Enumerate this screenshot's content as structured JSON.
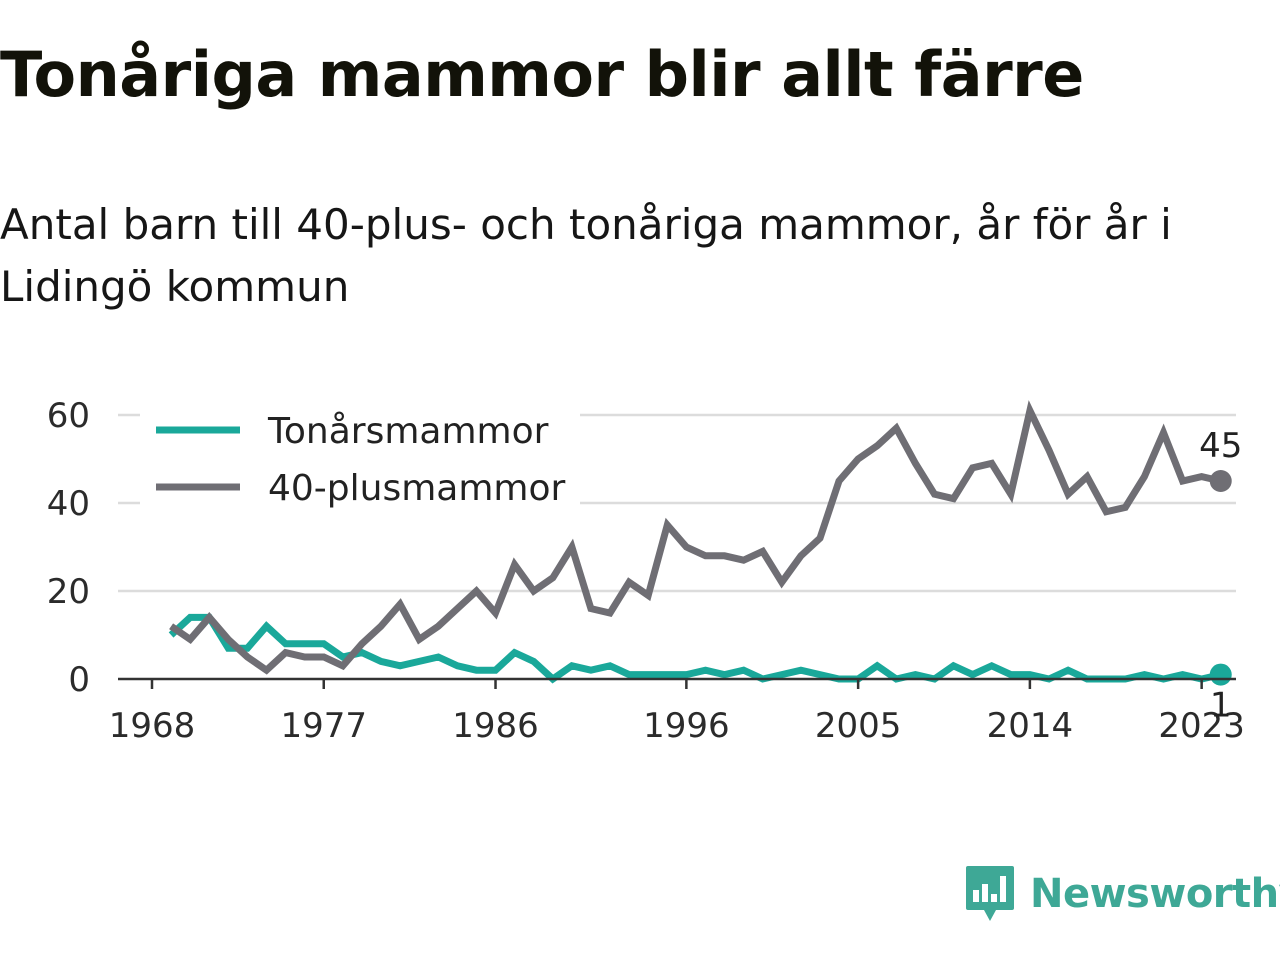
{
  "title": "Tonåriga mammor blir allt färre",
  "subtitle": "Antal barn till 40-plus- och tonåriga mammor, år för år i Lidingö kommun",
  "brand": {
    "name": "Newsworthy",
    "icon": "newsworthy-logo-icon",
    "color": "#3ea896"
  },
  "chart_data": {
    "type": "line",
    "x": [
      1969,
      1970,
      1971,
      1972,
      1973,
      1974,
      1975,
      1976,
      1977,
      1978,
      1979,
      1980,
      1981,
      1982,
      1983,
      1984,
      1985,
      1986,
      1987,
      1988,
      1989,
      1990,
      1991,
      1992,
      1993,
      1994,
      1995,
      1996,
      1997,
      1998,
      1999,
      2000,
      2001,
      2002,
      2003,
      2004,
      2005,
      2006,
      2007,
      2008,
      2009,
      2010,
      2011,
      2012,
      2013,
      2014,
      2015,
      2016,
      2017,
      2018,
      2019,
      2020,
      2021,
      2022,
      2023,
      2024
    ],
    "series": [
      {
        "name": "Tonårsmammor",
        "color": "#1aa89a",
        "values": [
          10,
          14,
          14,
          7,
          7,
          12,
          8,
          8,
          8,
          5,
          6,
          4,
          3,
          4,
          5,
          3,
          2,
          2,
          6,
          4,
          0,
          3,
          2,
          3,
          1,
          1,
          1,
          1,
          2,
          1,
          2,
          0,
          1,
          2,
          1,
          0,
          0,
          3,
          0,
          1,
          0,
          3,
          1,
          3,
          1,
          1,
          0,
          2,
          0,
          0,
          0,
          1,
          0,
          1,
          0,
          1
        ],
        "end_label": "1"
      },
      {
        "name": "40-plusmammor",
        "color": "#6f6e74",
        "values": [
          12,
          9,
          14,
          9,
          5,
          2,
          6,
          5,
          5,
          3,
          8,
          12,
          17,
          9,
          12,
          16,
          20,
          15,
          26,
          20,
          23,
          30,
          16,
          15,
          22,
          19,
          35,
          30,
          28,
          28,
          27,
          29,
          22,
          28,
          32,
          45,
          50,
          53,
          57,
          49,
          42,
          41,
          48,
          49,
          42,
          61,
          52,
          42,
          46,
          38,
          39,
          46,
          56,
          45,
          46,
          45
        ],
        "end_label": "45"
      }
    ],
    "x_ticks": [
      "1968",
      "1977",
      "1986",
      "1996",
      "2005",
      "2014",
      "2023"
    ],
    "y_ticks": [
      "0",
      "20",
      "40",
      "60"
    ],
    "ylim": [
      0,
      60
    ],
    "grid": true,
    "legend_position": "top-left"
  }
}
